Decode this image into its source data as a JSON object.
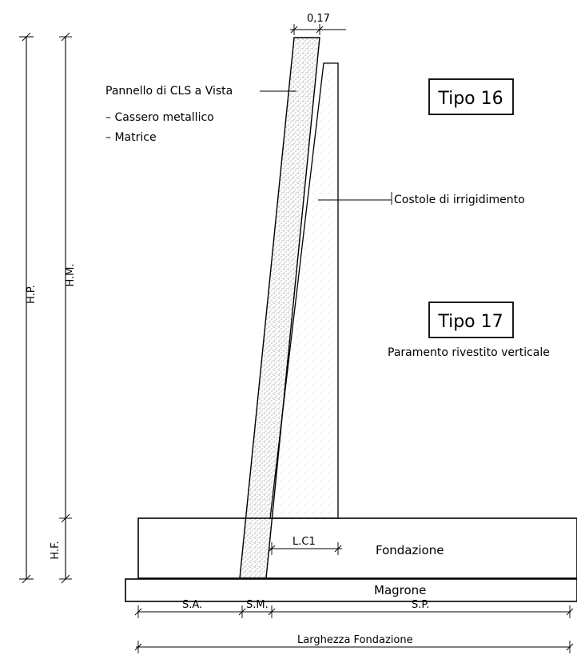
{
  "dimensions": {
    "hp": "H.P.",
    "hm": "H.M.",
    "hf": "H.F.",
    "thickness": "0,17",
    "lc1": "L.C1",
    "sa": "S.A.",
    "sm": "S.M.",
    "sp": "S.P.",
    "foundation_width": "Larghezza Fondazione"
  },
  "labels": {
    "panel": "Pannello di CLS a Vista",
    "formwork": "– Cassero metallico",
    "matrix": "– Matrice",
    "ribs": "Costole di irrigidimento",
    "foundation": "Fondazione",
    "lean_concrete": "Magrone",
    "type16": "Tipo 16",
    "type17": "Tipo 17",
    "type17_desc": "Paramento rivestito verticale"
  }
}
